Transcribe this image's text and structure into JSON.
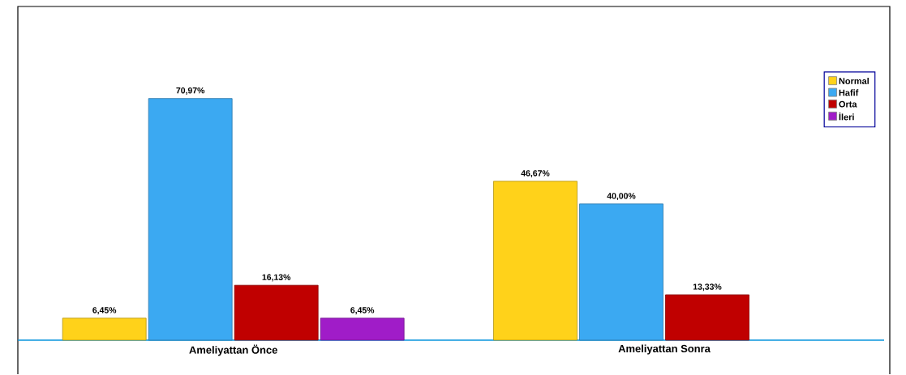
{
  "chart_data": {
    "type": "bar",
    "categories": [
      "Ameliyattan Önce",
      "Ameliyattan Sonra"
    ],
    "series": [
      {
        "name": "Normal",
        "color": "#ffd21a",
        "values": [
          6.45,
          46.67
        ],
        "value_labels": [
          "6,45%",
          "46,67%"
        ]
      },
      {
        "name": "Hafif",
        "color": "#3ba9f2",
        "values": [
          70.97,
          40.0
        ],
        "value_labels": [
          "70,97%",
          "40,00%"
        ]
      },
      {
        "name": "Orta",
        "color": "#c00000",
        "values": [
          16.13,
          13.33
        ],
        "value_labels": [
          "16,13%",
          "13,33%"
        ]
      },
      {
        "name": "İleri",
        "color": "#a01cc8",
        "values": [
          6.45,
          null
        ],
        "value_labels": [
          "6,45%",
          null
        ]
      }
    ],
    "ylim": [
      0,
      98
    ],
    "legend": "top right"
  }
}
